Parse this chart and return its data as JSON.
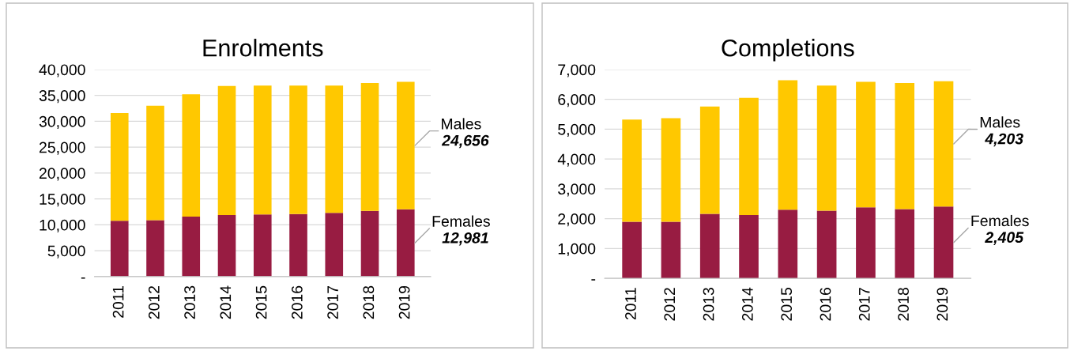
{
  "chart_data": [
    {
      "type": "bar",
      "title": "Enrolments",
      "stacked": true,
      "grid": "y",
      "legend": false,
      "categories": [
        "2011",
        "2012",
        "2013",
        "2014",
        "2015",
        "2016",
        "2017",
        "2018",
        "2019"
      ],
      "ylim": [
        0,
        40000
      ],
      "yticks": [
        {
          "value": 0,
          "label": "-"
        },
        {
          "value": 5000,
          "label": "5,000"
        },
        {
          "value": 10000,
          "label": "10,000"
        },
        {
          "value": 15000,
          "label": "15,000"
        },
        {
          "value": 20000,
          "label": "20,000"
        },
        {
          "value": 25000,
          "label": "25,000"
        },
        {
          "value": 30000,
          "label": "30,000"
        },
        {
          "value": 35000,
          "label": "35,000"
        },
        {
          "value": 40000,
          "label": "40,000"
        }
      ],
      "series": [
        {
          "name": "Females",
          "color": "#981c42",
          "values": [
            10800,
            10900,
            11600,
            11900,
            12000,
            12100,
            12300,
            12700,
            12981
          ],
          "value_labels": [
            null,
            null,
            null,
            null,
            null,
            null,
            null,
            null,
            "12,981"
          ]
        },
        {
          "name": "Males",
          "color": "#ffc800",
          "values": [
            20800,
            22100,
            23600,
            24900,
            24900,
            24800,
            24600,
            24700,
            24656
          ],
          "value_labels": [
            null,
            null,
            null,
            null,
            null,
            null,
            null,
            null,
            "24,656"
          ]
        }
      ]
    },
    {
      "type": "bar",
      "title": "Completions",
      "stacked": true,
      "grid": "y",
      "legend": false,
      "categories": [
        "2011",
        "2012",
        "2013",
        "2014",
        "2015",
        "2016",
        "2017",
        "2018",
        "2019"
      ],
      "ylim": [
        0,
        7000
      ],
      "yticks": [
        {
          "value": 0,
          "label": "-"
        },
        {
          "value": 1000,
          "label": "1,000"
        },
        {
          "value": 2000,
          "label": "2,000"
        },
        {
          "value": 3000,
          "label": "3,000"
        },
        {
          "value": 4000,
          "label": "4,000"
        },
        {
          "value": 5000,
          "label": "5,000"
        },
        {
          "value": 6000,
          "label": "6,000"
        },
        {
          "value": 7000,
          "label": "7,000"
        }
      ],
      "series": [
        {
          "name": "Females",
          "color": "#981c42",
          "values": [
            1900,
            1900,
            2160,
            2120,
            2300,
            2270,
            2380,
            2320,
            2405
          ],
          "value_labels": [
            null,
            null,
            null,
            null,
            null,
            null,
            null,
            null,
            "2,405"
          ]
        },
        {
          "name": "Males",
          "color": "#ffc800",
          "values": [
            3420,
            3470,
            3600,
            3930,
            4340,
            4190,
            4210,
            4230,
            4203
          ],
          "value_labels": [
            null,
            null,
            null,
            null,
            null,
            null,
            null,
            null,
            "4,203"
          ]
        }
      ]
    }
  ]
}
